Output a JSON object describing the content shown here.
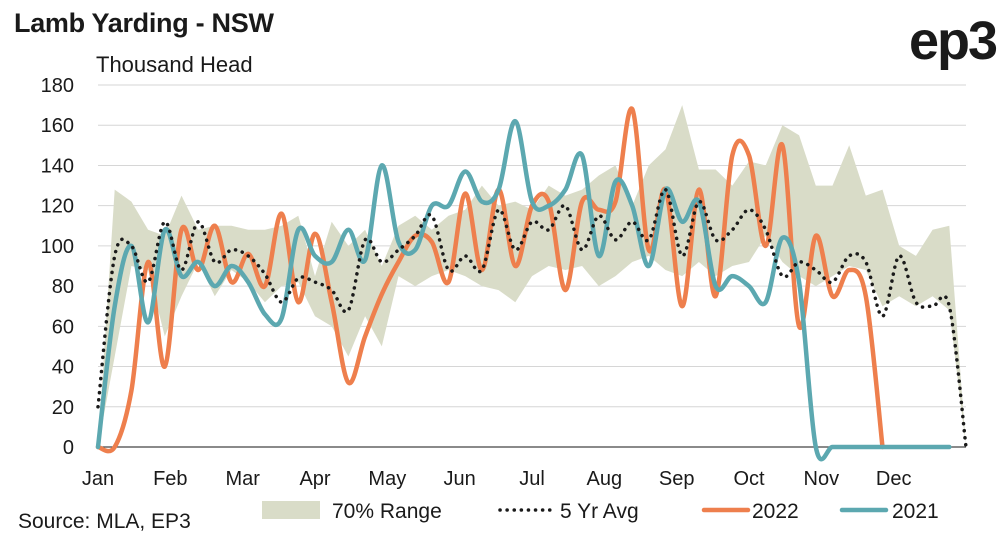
{
  "header": {
    "title": "Lamb Yarding - NSW",
    "logo": "ep3",
    "source": "Source: MLA, EP3"
  },
  "chart_data": {
    "type": "line",
    "title": "Lamb Yarding - NSW",
    "ylabel": "Thousand Head",
    "xlabel": "",
    "ylim": [
      0,
      180
    ],
    "yticks": [
      0,
      20,
      40,
      60,
      80,
      100,
      120,
      140,
      160,
      180
    ],
    "xlim": [
      0,
      52
    ],
    "x_months": [
      "Jan",
      "Feb",
      "Mar",
      "Apr",
      "May",
      "Jun",
      "Jul",
      "Aug",
      "Sep",
      "Oct",
      "Nov",
      "Dec"
    ],
    "grid": true,
    "legend_position": "bottom",
    "series": [
      {
        "name": "70% Range",
        "kind": "band",
        "color": "#d9dcc8",
        "x": [
          0,
          1,
          2,
          3,
          4,
          5,
          6,
          7,
          8,
          9,
          10,
          11,
          12,
          13,
          14,
          15,
          16,
          17,
          18,
          19,
          20,
          21,
          22,
          23,
          24,
          25,
          26,
          27,
          28,
          29,
          30,
          31,
          32,
          33,
          34,
          35,
          36,
          37,
          38,
          39,
          40,
          41,
          42,
          43,
          44,
          45,
          46,
          47,
          48,
          49,
          50,
          51,
          52
        ],
        "low": [
          0,
          45,
          90,
          88,
          55,
          75,
          92,
          75,
          88,
          82,
          72,
          80,
          82,
          65,
          60,
          45,
          65,
          50,
          85,
          80,
          85,
          88,
          85,
          80,
          78,
          72,
          85,
          90,
          88,
          90,
          80,
          85,
          92,
          95,
          88,
          85,
          92,
          85,
          90,
          92,
          105,
          92,
          85,
          80,
          85,
          90,
          88,
          70,
          75,
          70,
          75,
          68,
          0
        ],
        "high": [
          0,
          128,
          122,
          108,
          105,
          125,
          108,
          110,
          110,
          108,
          108,
          110,
          115,
          85,
          112,
          100,
          108,
          90,
          110,
          115,
          108,
          115,
          118,
          130,
          120,
          122,
          118,
          130,
          125,
          128,
          135,
          140,
          120,
          140,
          148,
          170,
          138,
          138,
          130,
          142,
          140,
          160,
          155,
          130,
          130,
          150,
          125,
          128,
          100,
          95,
          108,
          110,
          0
        ]
      },
      {
        "name": "5 Yr Avg",
        "kind": "dotted",
        "color": "#1a1a1a",
        "x": [
          0,
          1,
          2,
          3,
          4,
          5,
          6,
          7,
          8,
          9,
          10,
          11,
          12,
          13,
          14,
          15,
          16,
          17,
          18,
          19,
          20,
          21,
          22,
          23,
          24,
          25,
          26,
          27,
          28,
          29,
          30,
          31,
          32,
          33,
          34,
          35,
          36,
          37,
          38,
          39,
          40,
          41,
          42,
          43,
          44,
          45,
          46,
          47,
          48,
          49,
          50,
          51,
          52
        ],
        "y": [
          20,
          95,
          100,
          82,
          112,
          88,
          112,
          92,
          98,
          95,
          86,
          72,
          84,
          82,
          78,
          68,
          103,
          92,
          98,
          105,
          115,
          88,
          95,
          88,
          118,
          98,
          112,
          108,
          120,
          98,
          115,
          103,
          112,
          103,
          128,
          95,
          122,
          103,
          108,
          118,
          108,
          85,
          92,
          88,
          82,
          95,
          92,
          65,
          95,
          72,
          70,
          70,
          0
        ]
      },
      {
        "name": "2022",
        "kind": "line",
        "color": "#ee7f4d",
        "x": [
          0,
          1,
          2,
          3,
          4,
          5,
          6,
          7,
          8,
          9,
          10,
          11,
          12,
          13,
          14,
          15,
          16,
          17,
          18,
          19,
          20,
          21,
          22,
          23,
          24,
          25,
          26,
          27,
          28,
          29,
          30,
          31,
          32,
          33,
          34,
          35,
          36,
          37,
          38,
          39,
          40,
          41,
          42,
          43,
          44,
          45,
          46,
          47
        ],
        "y": [
          0,
          0,
          28,
          92,
          40,
          108,
          88,
          110,
          82,
          96,
          80,
          116,
          72,
          106,
          72,
          32,
          55,
          76,
          92,
          105,
          102,
          82,
          126,
          88,
          128,
          90,
          120,
          122,
          78,
          122,
          118,
          122,
          168,
          98,
          128,
          70,
          128,
          75,
          145,
          145,
          100,
          150,
          60,
          105,
          75,
          88,
          75,
          0
        ]
      },
      {
        "name": "2021",
        "kind": "line",
        "color": "#5ca8b0",
        "x": [
          0,
          1,
          2,
          3,
          4,
          5,
          6,
          7,
          8,
          9,
          10,
          11,
          12,
          13,
          14,
          15,
          16,
          17,
          18,
          19,
          20,
          21,
          22,
          23,
          24,
          25,
          26,
          27,
          28,
          29,
          30,
          31,
          32,
          33,
          34,
          35,
          36,
          37,
          38,
          39,
          40,
          41,
          42,
          43,
          44,
          45,
          46,
          47,
          48,
          49,
          50,
          51
        ],
        "y": [
          0,
          70,
          100,
          62,
          108,
          85,
          92,
          80,
          90,
          82,
          66,
          64,
          108,
          95,
          92,
          108,
          93,
          140,
          102,
          98,
          120,
          120,
          137,
          122,
          128,
          162,
          122,
          120,
          128,
          145,
          95,
          132,
          120,
          90,
          128,
          112,
          122,
          80,
          85,
          80,
          72,
          104,
          82,
          0,
          0,
          0,
          0,
          0,
          0,
          0,
          0,
          0
        ]
      }
    ]
  },
  "legend": [
    {
      "label": "70% Range",
      "kind": "band",
      "color": "#d9dcc8"
    },
    {
      "label": "5 Yr Avg",
      "kind": "dotted",
      "color": "#1a1a1a"
    },
    {
      "label": "2022",
      "kind": "line",
      "color": "#ee7f4d"
    },
    {
      "label": "2021",
      "kind": "line",
      "color": "#5ca8b0"
    }
  ]
}
